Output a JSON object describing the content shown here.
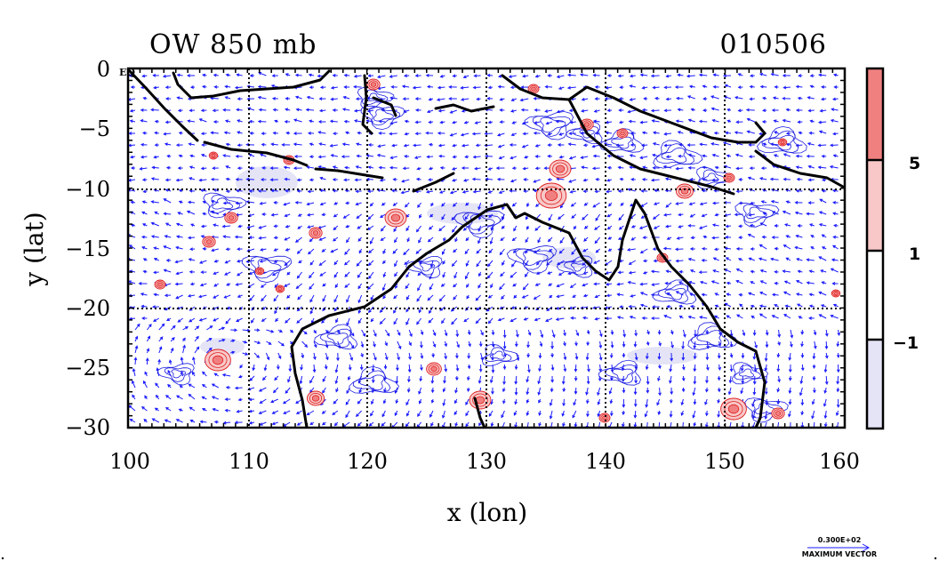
{
  "title_left": "OW 850 mb",
  "title_right": "010506",
  "xlabel": "x (lon)",
  "ylabel": "y (lat)",
  "eq_marker": "EQ",
  "x_ticks": [
    "100",
    "110",
    "120",
    "130",
    "140",
    "150",
    "160"
  ],
  "y_ticks": [
    "0",
    "−5",
    "−10",
    "−15",
    "−20",
    "−25",
    "−30"
  ],
  "colorbar": {
    "labels": [
      "5",
      "1",
      "−1"
    ],
    "colors": [
      "#f08080",
      "#f8c8c8",
      "#ffffff",
      "#e4e4f6"
    ]
  },
  "vector_legend": {
    "value": "0.300E+02",
    "caption": "MAXIMUM VECTOR"
  },
  "colors": {
    "vectors": "#1a1aff",
    "positive_contours": "#e02020",
    "negative_contours": "#2020e0",
    "coast": "#000000"
  }
}
